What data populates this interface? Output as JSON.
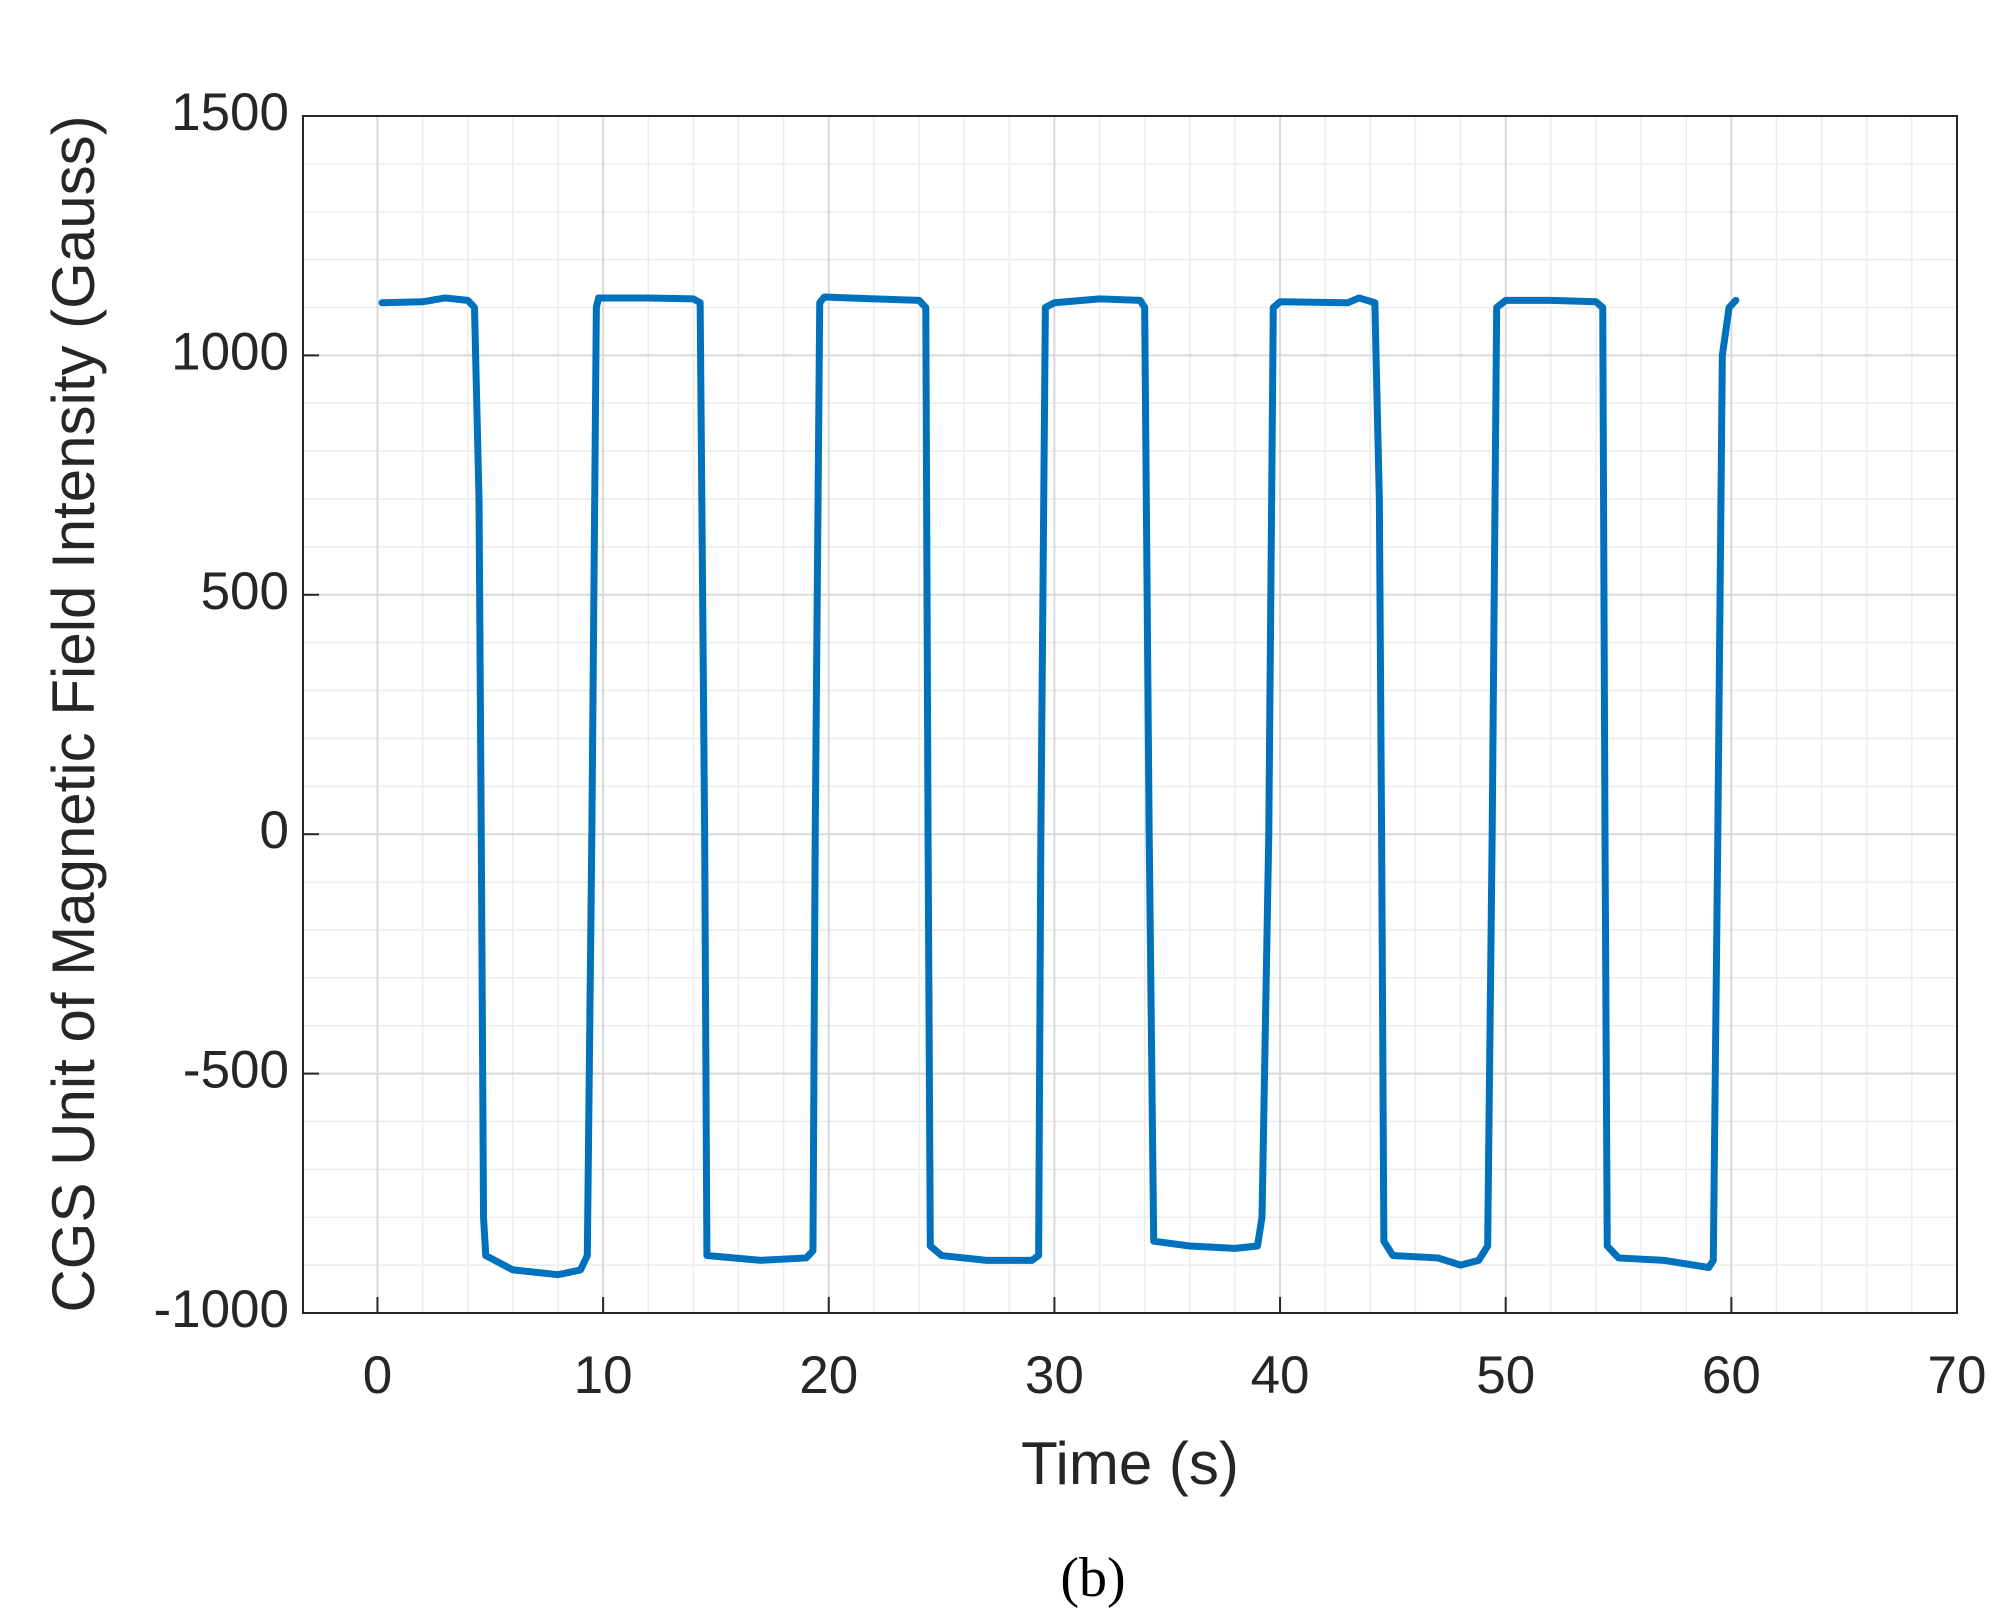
{
  "chart_data": {
    "type": "line",
    "caption": "(b)",
    "x_label": "Time (s)",
    "y_label": "CGS Unit of Magnetic Field Intensity (Gauss)",
    "x": [
      0.2,
      2,
      3,
      4,
      4.3,
      4.5,
      4.6,
      4.7,
      4.8,
      6,
      8,
      9,
      9.3,
      9.5,
      9.7,
      9.8,
      12,
      14,
      14.3,
      14.5,
      14.6,
      17,
      19,
      19.3,
      19.4,
      19.6,
      19.8,
      22,
      24,
      24.3,
      24.4,
      24.5,
      25,
      27,
      29,
      29.3,
      29.4,
      29.6,
      30,
      32,
      33.8,
      34,
      34.2,
      34.4,
      36,
      38,
      39,
      39.2,
      39.5,
      39.7,
      40,
      43,
      43.5,
      44.2,
      44.4,
      44.5,
      44.6,
      45,
      47,
      48,
      48.8,
      49.2,
      49.4,
      49.6,
      50,
      52,
      54,
      54.3,
      54.4,
      54.5,
      55,
      57,
      59,
      59.2,
      59.4,
      59.6,
      59.9,
      60.2
    ],
    "series": [
      {
        "name": "Gauss",
        "color": "#0072bd",
        "values": [
          1110,
          1112,
          1120,
          1115,
          1100,
          700,
          0,
          -800,
          -880,
          -910,
          -920,
          -910,
          -880,
          0,
          1100,
          1120,
          1120,
          1118,
          1110,
          0,
          -880,
          -890,
          -885,
          -870,
          0,
          1110,
          1122,
          1118,
          1115,
          1100,
          0,
          -860,
          -880,
          -890,
          -890,
          -880,
          0,
          1100,
          1110,
          1118,
          1115,
          1100,
          0,
          -850,
          -860,
          -865,
          -860,
          -800,
          0,
          1100,
          1112,
          1110,
          1120,
          1110,
          700,
          0,
          -850,
          -880,
          -885,
          -900,
          -890,
          -860,
          0,
          1100,
          1115,
          1115,
          1112,
          1100,
          0,
          -860,
          -885,
          -890,
          -905,
          -890,
          0,
          1000,
          1100,
          1115
        ]
      }
    ],
    "xlim": [
      -3.3,
      70
    ],
    "xticks": [
      0,
      10,
      20,
      30,
      40,
      50,
      60,
      70
    ],
    "ylim": [
      -1000,
      1500
    ],
    "yticks": [
      -1000,
      -500,
      0,
      500,
      1000,
      1500
    ],
    "grid": true
  }
}
